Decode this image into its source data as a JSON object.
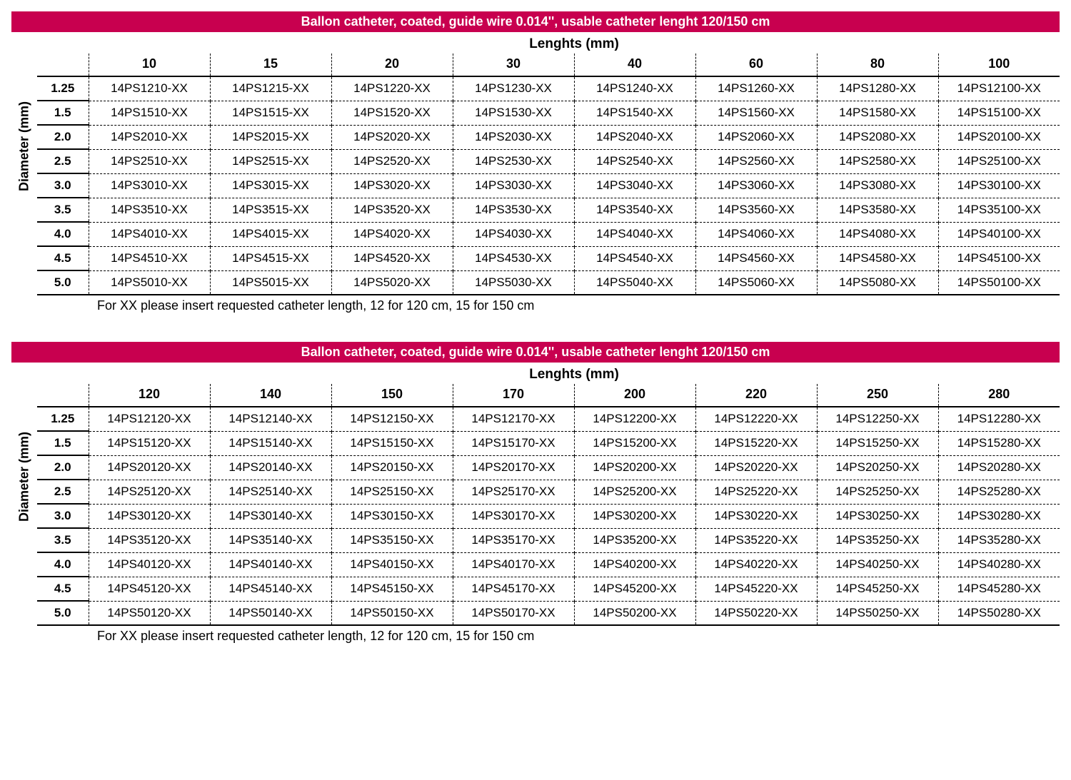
{
  "colors": {
    "banner_bg": "#c8004f",
    "banner_fg": "#ffffff",
    "text": "#000000",
    "bg": "#ffffff"
  },
  "fonts": {
    "family": "Verdana",
    "banner_size_pt": 13,
    "header_size_pt": 14,
    "cell_size_pt": 13
  },
  "tables": [
    {
      "banner": "Ballon catheter, coated, guide wire 0.014'', usable catheter lenght 120/150 cm",
      "super_header": "Lenghts (mm)",
      "y_label": "Diameter (mm)",
      "columns": [
        "10",
        "15",
        "20",
        "30",
        "40",
        "60",
        "80",
        "100"
      ],
      "rows": [
        "1.25",
        "1.5",
        "2.0",
        "2.5",
        "3.0",
        "3.5",
        "4.0",
        "4.5",
        "5.0"
      ],
      "cells": [
        [
          "14PS1210-XX",
          "14PS1215-XX",
          "14PS1220-XX",
          "14PS1230-XX",
          "14PS1240-XX",
          "14PS1260-XX",
          "14PS1280-XX",
          "14PS12100-XX"
        ],
        [
          "14PS1510-XX",
          "14PS1515-XX",
          "14PS1520-XX",
          "14PS1530-XX",
          "14PS1540-XX",
          "14PS1560-XX",
          "14PS1580-XX",
          "14PS15100-XX"
        ],
        [
          "14PS2010-XX",
          "14PS2015-XX",
          "14PS2020-XX",
          "14PS2030-XX",
          "14PS2040-XX",
          "14PS2060-XX",
          "14PS2080-XX",
          "14PS20100-XX"
        ],
        [
          "14PS2510-XX",
          "14PS2515-XX",
          "14PS2520-XX",
          "14PS2530-XX",
          "14PS2540-XX",
          "14PS2560-XX",
          "14PS2580-XX",
          "14PS25100-XX"
        ],
        [
          "14PS3010-XX",
          "14PS3015-XX",
          "14PS3020-XX",
          "14PS3030-XX",
          "14PS3040-XX",
          "14PS3060-XX",
          "14PS3080-XX",
          "14PS30100-XX"
        ],
        [
          "14PS3510-XX",
          "14PS3515-XX",
          "14PS3520-XX",
          "14PS3530-XX",
          "14PS3540-XX",
          "14PS3560-XX",
          "14PS3580-XX",
          "14PS35100-XX"
        ],
        [
          "14PS4010-XX",
          "14PS4015-XX",
          "14PS4020-XX",
          "14PS4030-XX",
          "14PS4040-XX",
          "14PS4060-XX",
          "14PS4080-XX",
          "14PS40100-XX"
        ],
        [
          "14PS4510-XX",
          "14PS4515-XX",
          "14PS4520-XX",
          "14PS4530-XX",
          "14PS4540-XX",
          "14PS4560-XX",
          "14PS4580-XX",
          "14PS45100-XX"
        ],
        [
          "14PS5010-XX",
          "14PS5015-XX",
          "14PS5020-XX",
          "14PS5030-XX",
          "14PS5040-XX",
          "14PS5060-XX",
          "14PS5080-XX",
          "14PS50100-XX"
        ]
      ],
      "footnote": "For XX please insert requested catheter length, 12 for 120 cm, 15 for 150 cm"
    },
    {
      "banner": "Ballon catheter, coated, guide wire 0.014'', usable catheter lenght 120/150 cm",
      "super_header": "Lenghts (mm)",
      "y_label": "Diameter (mm)",
      "columns": [
        "120",
        "140",
        "150",
        "170",
        "200",
        "220",
        "250",
        "280"
      ],
      "rows": [
        "1.25",
        "1.5",
        "2.0",
        "2.5",
        "3.0",
        "3.5",
        "4.0",
        "4.5",
        "5.0"
      ],
      "cells": [
        [
          "14PS12120-XX",
          "14PS12140-XX",
          "14PS12150-XX",
          "14PS12170-XX",
          "14PS12200-XX",
          "14PS12220-XX",
          "14PS12250-XX",
          "14PS12280-XX"
        ],
        [
          "14PS15120-XX",
          "14PS15140-XX",
          "14PS15150-XX",
          "14PS15170-XX",
          "14PS15200-XX",
          "14PS15220-XX",
          "14PS15250-XX",
          "14PS15280-XX"
        ],
        [
          "14PS20120-XX",
          "14PS20140-XX",
          "14PS20150-XX",
          "14PS20170-XX",
          "14PS20200-XX",
          "14PS20220-XX",
          "14PS20250-XX",
          "14PS20280-XX"
        ],
        [
          "14PS25120-XX",
          "14PS25140-XX",
          "14PS25150-XX",
          "14PS25170-XX",
          "14PS25200-XX",
          "14PS25220-XX",
          "14PS25250-XX",
          "14PS25280-XX"
        ],
        [
          "14PS30120-XX",
          "14PS30140-XX",
          "14PS30150-XX",
          "14PS30170-XX",
          "14PS30200-XX",
          "14PS30220-XX",
          "14PS30250-XX",
          "14PS30280-XX"
        ],
        [
          "14PS35120-XX",
          "14PS35140-XX",
          "14PS35150-XX",
          "14PS35170-XX",
          "14PS35200-XX",
          "14PS35220-XX",
          "14PS35250-XX",
          "14PS35280-XX"
        ],
        [
          "14PS40120-XX",
          "14PS40140-XX",
          "14PS40150-XX",
          "14PS40170-XX",
          "14PS40200-XX",
          "14PS40220-XX",
          "14PS40250-XX",
          "14PS40280-XX"
        ],
        [
          "14PS45120-XX",
          "14PS45140-XX",
          "14PS45150-XX",
          "14PS45170-XX",
          "14PS45200-XX",
          "14PS45220-XX",
          "14PS45250-XX",
          "14PS45280-XX"
        ],
        [
          "14PS50120-XX",
          "14PS50140-XX",
          "14PS50150-XX",
          "14PS50170-XX",
          "14PS50200-XX",
          "14PS50220-XX",
          "14PS50250-XX",
          "14PS50280-XX"
        ]
      ],
      "footnote": "For XX please insert requested catheter length, 12 for 120 cm, 15 for 150 cm"
    }
  ]
}
